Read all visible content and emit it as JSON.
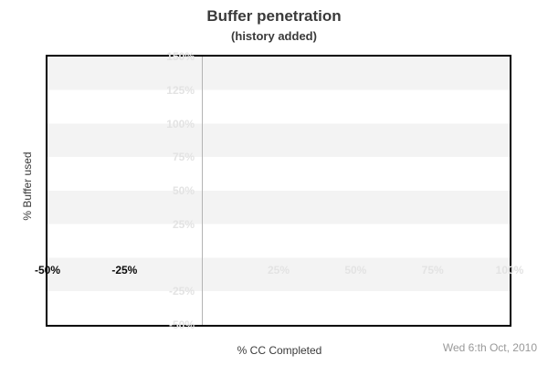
{
  "header": {
    "title": "Buffer penetration",
    "subtitle": "(history added)"
  },
  "footer": {
    "date": "Wed 6:th Oct, 2010"
  },
  "chart_data": {
    "type": "line",
    "title": "Buffer penetration",
    "subtitle": "(history added)",
    "xlabel": "% CC Completed",
    "ylabel": "% Buffer used",
    "xlim": [
      -50,
      100
    ],
    "ylim": [
      -50,
      150
    ],
    "series": [],
    "x_ticks": [
      {
        "v": -50,
        "label": "-50%",
        "emphasis": true
      },
      {
        "v": -25,
        "label": "-25%",
        "emphasis": true
      },
      {
        "v": 25,
        "label": "25%",
        "emphasis": false
      },
      {
        "v": 50,
        "label": "50%",
        "emphasis": false
      },
      {
        "v": 75,
        "label": "75%",
        "emphasis": false
      },
      {
        "v": 100,
        "label": "100%",
        "emphasis": false
      }
    ],
    "y_ticks": [
      {
        "v": 150,
        "label": "150%"
      },
      {
        "v": 125,
        "label": "125%"
      },
      {
        "v": 100,
        "label": "100%"
      },
      {
        "v": 75,
        "label": "75%"
      },
      {
        "v": 50,
        "label": "50%"
      },
      {
        "v": 25,
        "label": "25%"
      },
      {
        "v": -25,
        "label": "-25%"
      },
      {
        "v": -50,
        "label": "-50%"
      }
    ],
    "zero_line_x": 0,
    "grid": "alternating horizontal bands every 25%, vertical line at x=0",
    "legend": "none"
  },
  "colors": {
    "band_gray": "#f3f3f3",
    "light_tick_label": "#e3e3e3",
    "dark_tick_label": "#0a0a0a",
    "zero_line": "#b3b3b3",
    "plot_border": "#000000",
    "title_text": "#3a3a3a",
    "date_text": "#999999",
    "background": "#ffffff"
  }
}
